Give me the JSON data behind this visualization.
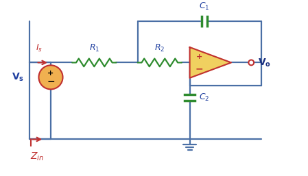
{
  "bg_color": "#ffffff",
  "wire_color": "#4a6fa5",
  "resistor_color": "#2e8b2e",
  "capacitor_color": "#2e8b2e",
  "opamp_fill": "#f0d060",
  "opamp_border": "#c03030",
  "source_fill": "#f0b050",
  "source_border": "#c03030",
  "arrow_color": "#c03030",
  "label_blue": "#2040a0",
  "label_red": "#c03030",
  "label_darkblue": "#1a3080"
}
